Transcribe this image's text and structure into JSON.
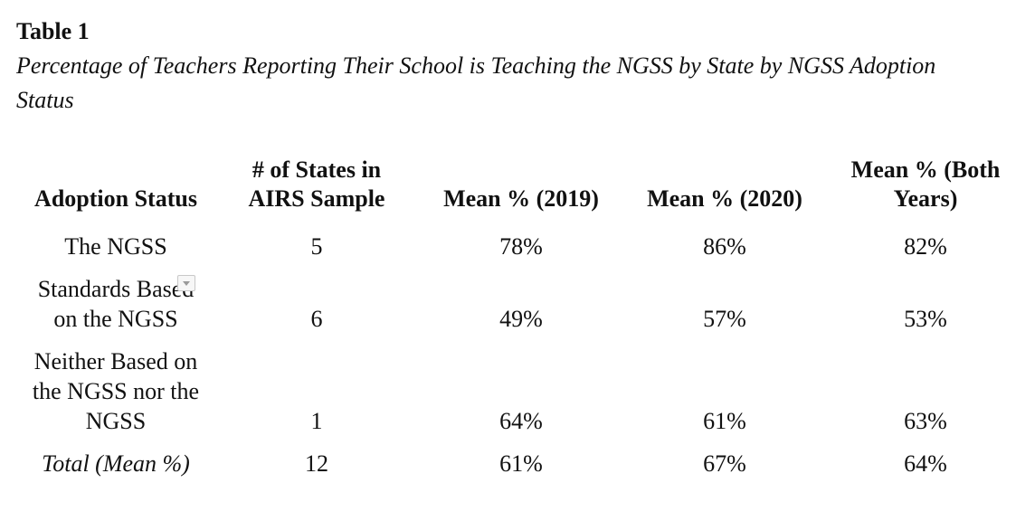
{
  "document": {
    "label": "Table 1",
    "caption": "Percentage of Teachers Reporting Their School is Teaching the NGSS by State by NGSS Adoption Status"
  },
  "table": {
    "headers": {
      "adoption_status": "Adoption Status",
      "states_line1": "# of States in",
      "states_line2": "AIRS Sample",
      "mean_2019": "Mean % (2019)",
      "mean_2020": "Mean % (2020)",
      "mean_both_line1": "Mean % (Both",
      "mean_both_line2": "Years)"
    },
    "rows": [
      {
        "status_lines": [
          "The NGSS"
        ],
        "states": "5",
        "mean_2019": "78%",
        "mean_2020": "86%",
        "mean_both": "82%"
      },
      {
        "status_lines": [
          "Standards Based",
          "on the NGSS"
        ],
        "states": "6",
        "mean_2019": "49%",
        "mean_2020": "57%",
        "mean_both": "53%"
      },
      {
        "status_lines": [
          "Neither Based on",
          "the NGSS nor the",
          "NGSS"
        ],
        "states": "1",
        "mean_2019": "64%",
        "mean_2020": "61%",
        "mean_both": "63%"
      },
      {
        "status_lines": [
          "Total (Mean %)"
        ],
        "states": "12",
        "mean_2019": "61%",
        "mean_2020": "67%",
        "mean_both": "64%"
      }
    ]
  }
}
